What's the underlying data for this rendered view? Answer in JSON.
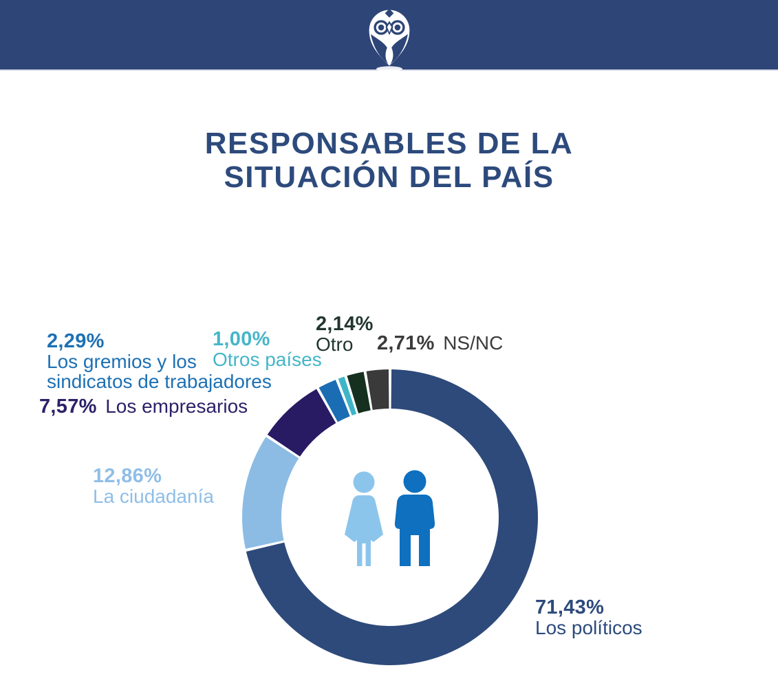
{
  "header": {
    "logo": "owl-location-pin-icon"
  },
  "title": {
    "line1": "RESPONSABLES DE LA",
    "line2": "SITUACIÓN DEL PAÍS"
  },
  "colors": {
    "header_bg": "#2e4577",
    "title": "#2d4a7c",
    "background": "#ffffff"
  },
  "center_icon": {
    "name": "man-woman-pictogram",
    "female_color": "#8cc5eb",
    "male_color": "#0e70bf"
  },
  "chart_data": {
    "type": "pie",
    "subtype": "donut",
    "title": "Responsables de la situación del país",
    "unit": "%",
    "start_angle_deg": 0,
    "direction": "clockwise",
    "legend_position": "callouts-around-ring",
    "grid": false,
    "segments": [
      {
        "id": "politicos",
        "label": "Los políticos",
        "value": 71.43,
        "pct_label": "71,43%",
        "color": "#2e4a7b",
        "text_color": "#2d4a7c"
      },
      {
        "id": "ciudadania",
        "label": "La ciudadanía",
        "value": 12.86,
        "pct_label": "12,86%",
        "color": "#8cbce4",
        "text_color": "#8fbee7"
      },
      {
        "id": "empresarios",
        "label": "Los empresarios",
        "value": 7.57,
        "pct_label": "7,57%",
        "color": "#281a63",
        "text_color": "#2b2168"
      },
      {
        "id": "gremios",
        "label": "Los gremios y los sindicatos de trabajadores",
        "value": 2.29,
        "pct_label": "2,29%",
        "color": "#1b6db3",
        "text_color": "#1d70b4",
        "label_lines": {
          "0": "Los gremios y los",
          "1": "sindicatos de trabajadores"
        }
      },
      {
        "id": "otros_paises",
        "label": "Otros países",
        "value": 1.0,
        "pct_label": "1,00%",
        "color": "#3eb5c7",
        "text_color": "#45b6c8"
      },
      {
        "id": "otro",
        "label": "Otro",
        "value": 2.14,
        "pct_label": "2,14%",
        "color": "#15301f",
        "text_color": "#223630"
      },
      {
        "id": "nsnc",
        "label": "NS/NC",
        "value": 2.71,
        "pct_label": "2,71%",
        "color": "#3a3a3a",
        "text_color": "#3b3b3b"
      }
    ]
  }
}
